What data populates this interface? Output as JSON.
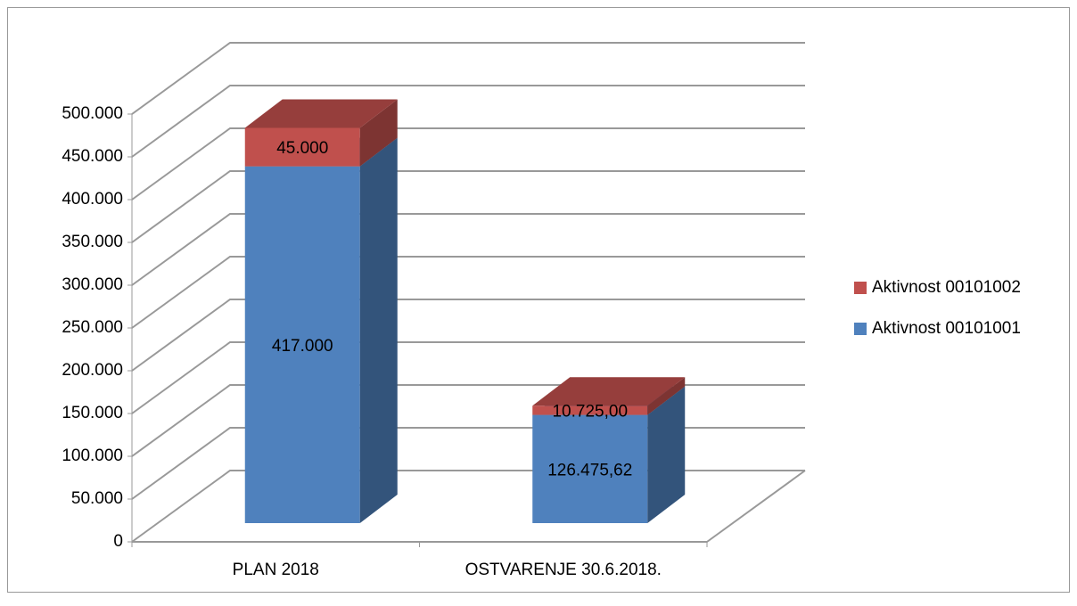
{
  "chart_data": {
    "type": "bar3d_stacked",
    "categories": [
      "PLAN 2018",
      "OSTVARENJE 30.6.2018."
    ],
    "series": [
      {
        "name": "Aktivnost 00101001",
        "color": "#4f81bd",
        "values": [
          417000,
          126475.62
        ],
        "value_labels": [
          "417.000",
          "126.475,62"
        ]
      },
      {
        "name": "Aktivnost 00101002",
        "color": "#c0504d",
        "values": [
          45000,
          10725
        ],
        "value_labels": [
          "45.000",
          "10.725,00"
        ]
      }
    ],
    "ylim": [
      0,
      500000
    ],
    "yticks": [
      0,
      {
        "value": 50000,
        "label": "50.000"
      },
      {
        "value": 100000,
        "label": "100.000"
      },
      {
        "value": 150000,
        "label": "150.000"
      },
      {
        "value": 200000,
        "label": "200.000"
      },
      {
        "value": 250000,
        "label": "250.000"
      },
      {
        "value": 300000,
        "label": "300.000"
      },
      {
        "value": 350000,
        "label": "350.000"
      },
      {
        "value": 400000,
        "label": "400.000"
      },
      {
        "value": 450000,
        "label": "450.000"
      },
      {
        "value": 500000,
        "label": "500.000"
      }
    ],
    "grid": true,
    "legend": "right"
  }
}
